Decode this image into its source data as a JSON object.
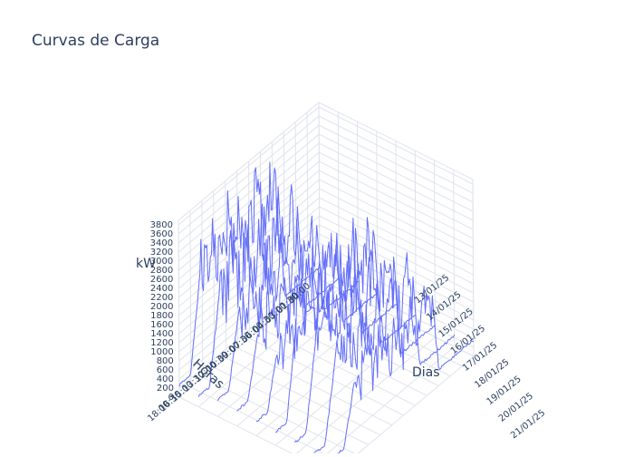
{
  "chart_data": {
    "type": "line",
    "title": "Curvas de Carga",
    "axes": {
      "x": {
        "label": "Horas"
      },
      "y": {
        "label": "Dias"
      },
      "z": {
        "label": "kW",
        "range": [
          0,
          3900
        ]
      }
    },
    "z_ticks": [
      "3800",
      "3600",
      "3400",
      "3200",
      "3000",
      "2800",
      "2600",
      "2400",
      "2200",
      "2000",
      "1800",
      "1600",
      "1400",
      "1200",
      "1000",
      "800",
      "600",
      "400",
      "200",
      "0"
    ],
    "x_ticks": [
      "00:00",
      "01:30",
      "03:00",
      "04:30",
      "06:00",
      "07:30",
      "09:00",
      "10:30",
      "12:00",
      "13:30",
      "15:00",
      "16:30",
      "18:00"
    ],
    "y_ticks": [
      "13/01/25",
      "14/01/25",
      "15/01/25",
      "16/01/25",
      "17/01/25",
      "18/01/25",
      "19/01/25",
      "20/01/25",
      "21/01/25"
    ],
    "series_color": "#636efa",
    "grid": true,
    "background": "#ffffff",
    "grid_color": "#dfe3ec"
  }
}
